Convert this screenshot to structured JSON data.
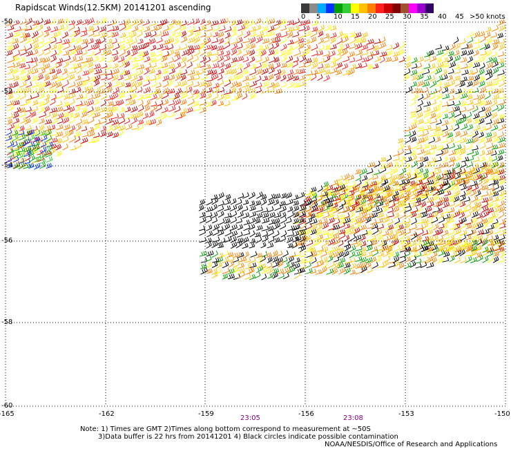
{
  "title": "Rapidscat Winds(12.5KM) 20141201 ascending",
  "legend": {
    "labels": [
      "0",
      "5",
      "10",
      "15",
      "20",
      "25",
      "30",
      "35",
      "40",
      "45",
      ">50 knots"
    ],
    "colors": [
      "#3a3a3a",
      "#8a8a8a",
      "#00aaff",
      "#0033ff",
      "#00a000",
      "#33cc33",
      "#ffff00",
      "#ffc000",
      "#ff7f00",
      "#ff2020",
      "#cc0000",
      "#800000",
      "#a05030",
      "#ff00ff",
      "#9900cc",
      "#330066"
    ]
  },
  "map": {
    "lon_labels": [
      "-165",
      "-162",
      "-159",
      "-156",
      "-153",
      "-150"
    ],
    "lat_labels": [
      "-50",
      "-52",
      "-54",
      "-56",
      "-58",
      "-60"
    ],
    "time_labels": [
      "23:05",
      "23:08"
    ]
  },
  "notes": {
    "line1": "Note: 1) Times are GMT 2)Times along bottom correspond to measurement at ~50S",
    "line2": "3)Data buffer is 22 hrs from 20141201 4) Black circles indicate possible contamination"
  },
  "credit": "NOAA/NESDIS/Office of Research and Applications"
}
